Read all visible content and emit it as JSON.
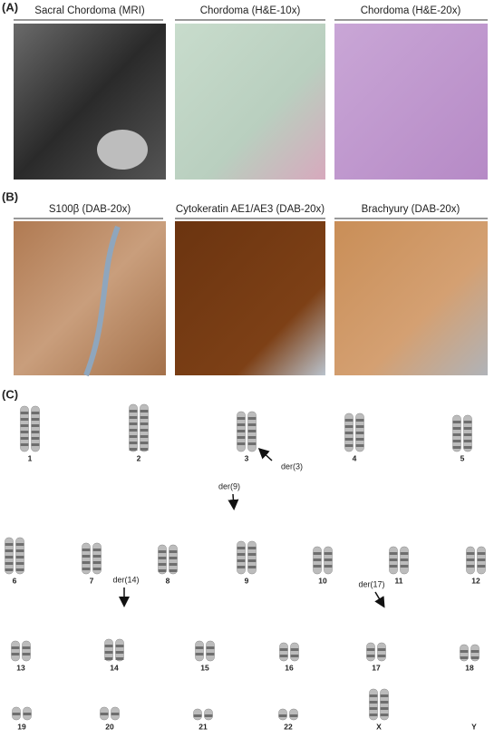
{
  "panels": [
    {
      "label": "(A)",
      "images": [
        {
          "title": "Sacral Chordoma (MRI)"
        },
        {
          "title": "Chordoma (H&E-10x)"
        },
        {
          "title": "Chordoma (H&E-20x)"
        }
      ]
    },
    {
      "label": "(B)",
      "images": [
        {
          "title": "S100β (DAB-20x)"
        },
        {
          "title": "Cytokeratin AE1/AE3 (DAB-20x)"
        },
        {
          "title": "Brachyury (DAB-20x)"
        }
      ]
    }
  ],
  "karyotype": {
    "label": "(C)",
    "chromosomes": [
      "1",
      "2",
      "3",
      "4",
      "5",
      "6",
      "7",
      "8",
      "9",
      "10",
      "11",
      "12",
      "13",
      "14",
      "15",
      "16",
      "17",
      "18",
      "19",
      "20",
      "21",
      "22",
      "X",
      "Y"
    ],
    "annotations": [
      "der(3)",
      "der(9)",
      "der(14)",
      "der(17)"
    ]
  }
}
